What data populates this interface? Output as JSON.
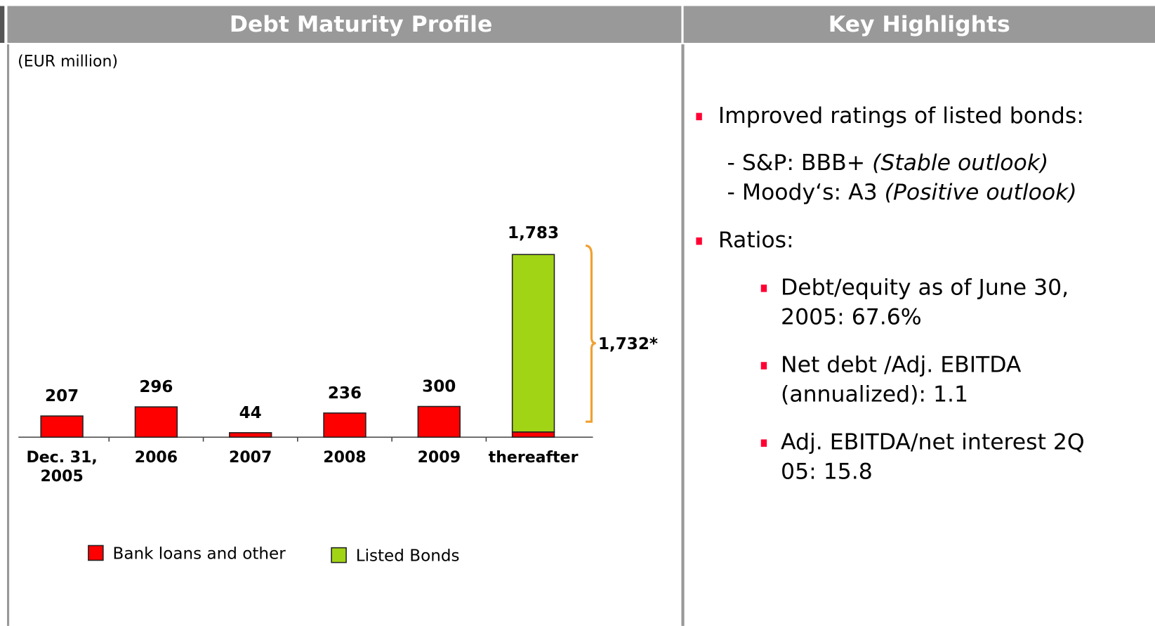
{
  "headers": {
    "left": "Debt Maturity Profile",
    "right": "Key Highlights"
  },
  "chart_data": {
    "type": "bar",
    "stacked": true,
    "subtitle": "(EUR million)",
    "categories": [
      "Dec. 31, 2005",
      "2006",
      "2007",
      "2008",
      "2009",
      "thereafter"
    ],
    "series": [
      {
        "name": "Bank loans and other",
        "color": "#ff0000",
        "values": [
          207,
          296,
          44,
          236,
          300,
          51
        ],
        "value_labels": [
          "207",
          "296",
          "44",
          "236",
          "300",
          null
        ]
      },
      {
        "name": "Listed Bonds",
        "color": "#a2d416",
        "values": [
          0,
          0,
          0,
          0,
          0,
          1732
        ],
        "value_labels": [
          null,
          null,
          null,
          null,
          null,
          "1,732*"
        ]
      }
    ],
    "annotations": [
      {
        "text": "1,783",
        "category": 5
      }
    ],
    "ylim": [
      0,
      2000
    ]
  },
  "highlights": {
    "items": [
      {
        "text": "Improved ratings of listed bonds:",
        "details": [
          {
            "plain": "- S&P: BBB+ ",
            "italic": "(Stable outlook)"
          },
          {
            "plain": "- Moody‘s: A3 ",
            "italic": "(Positive outlook)"
          }
        ]
      },
      {
        "text": "Ratios:",
        "subitems": [
          [
            "Debt/equity as of June 30,",
            "2005: 67.6%"
          ],
          [
            "Net debt /Adj. EBITDA",
            "(annualized): 1.1"
          ],
          [
            "Adj. EBITDA/net interest 2Q",
            "05: 15.8"
          ]
        ]
      }
    ]
  }
}
